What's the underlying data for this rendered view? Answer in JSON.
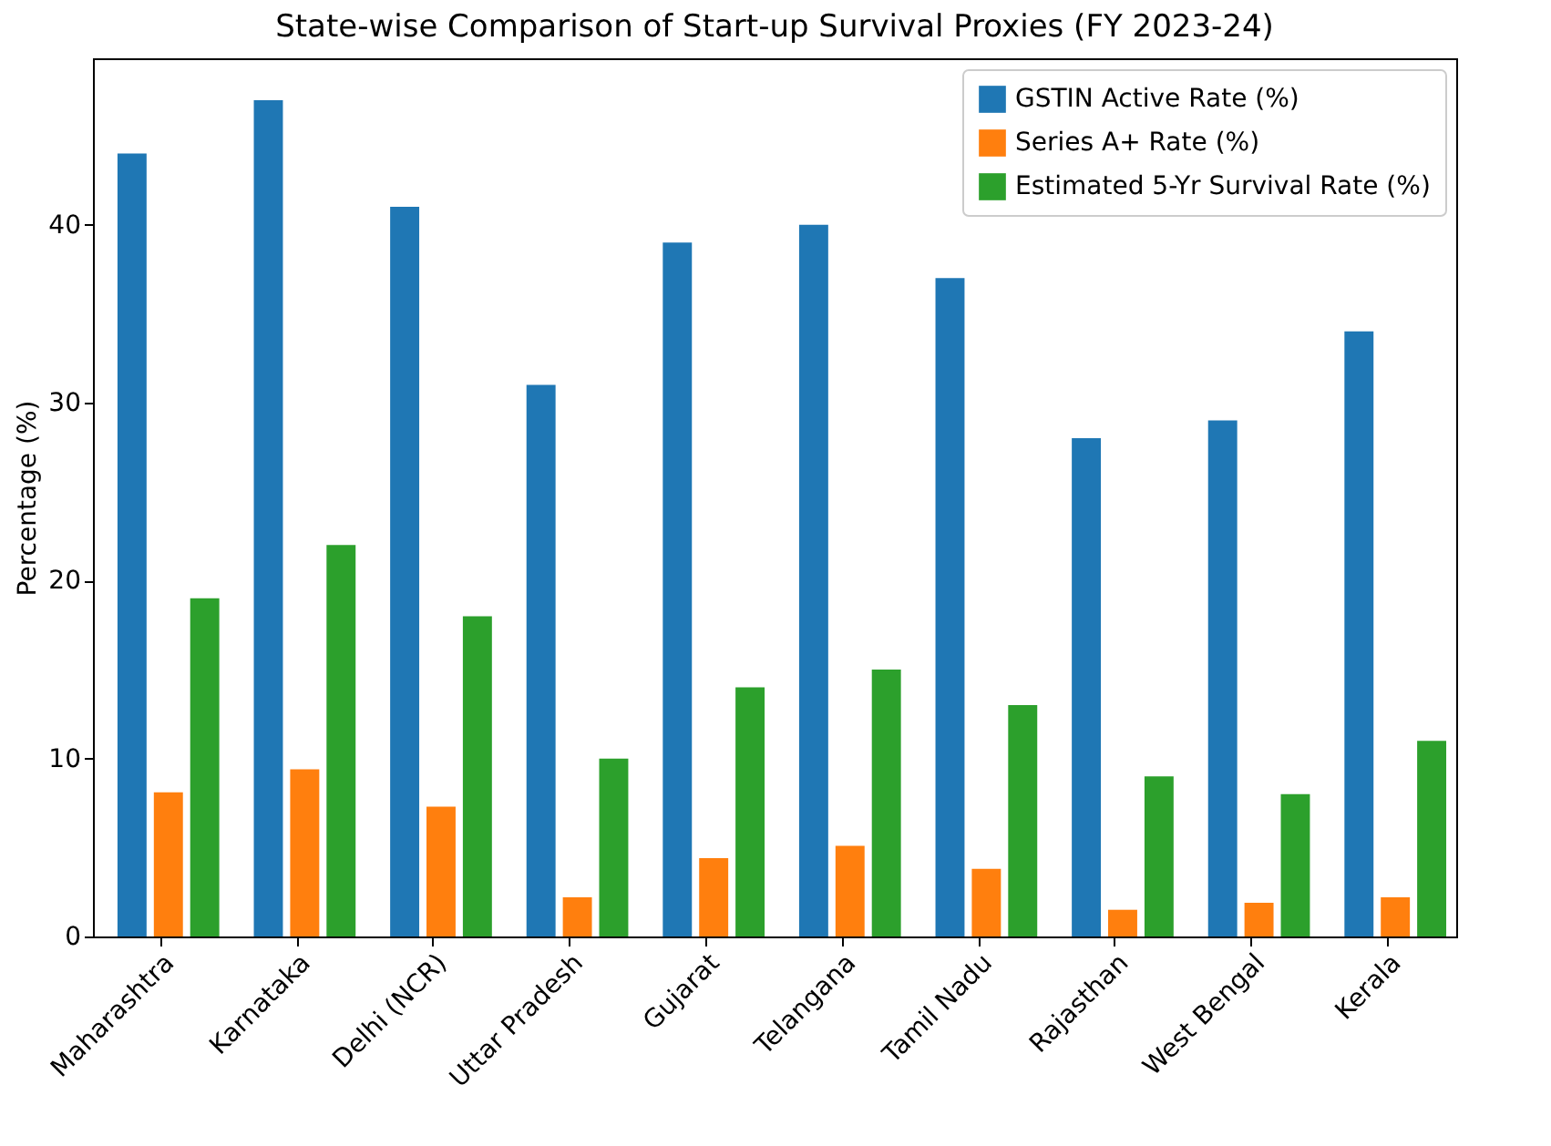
{
  "chart_data": {
    "type": "bar",
    "title": "State-wise Comparison of Start-up Survival Proxies (FY 2023-24)",
    "ylabel": "Percentage (%)",
    "categories": [
      "Maharashtra",
      "Karnataka",
      "Delhi (NCR)",
      "Uttar Pradesh",
      "Gujarat",
      "Telangana",
      "Tamil Nadu",
      "Rajasthan",
      "West Bengal",
      "Kerala"
    ],
    "series": [
      {
        "name": "GSTIN Active Rate (%)",
        "color": "#1f77b4",
        "values": [
          44,
          47,
          41,
          31,
          39,
          40,
          37,
          28,
          29,
          34
        ]
      },
      {
        "name": "Series A+ Rate (%)",
        "color": "#ff7f0e",
        "values": [
          8.1,
          9.4,
          7.3,
          2.2,
          4.4,
          5.1,
          3.8,
          1.5,
          1.9,
          2.2
        ]
      },
      {
        "name": "Estimated 5-Yr Survival Rate (%)",
        "color": "#2ca02c",
        "values": [
          19,
          22,
          18,
          10,
          14,
          15,
          13,
          9,
          8,
          11
        ]
      }
    ],
    "ylim": [
      0,
      49.35
    ],
    "yticks": [
      0,
      10,
      20,
      30,
      40
    ],
    "legend": "top right",
    "grid": false
  }
}
